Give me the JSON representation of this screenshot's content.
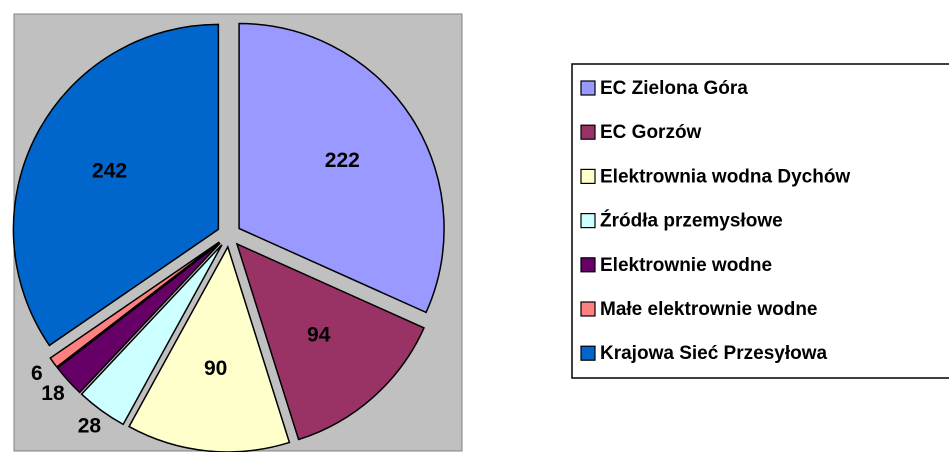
{
  "chart_data": {
    "type": "pie",
    "categories": [
      "EC Zielona Góra",
      "EC Gorzów",
      "Elektrownia wodna Dychów",
      "Źródła przemysłowe",
      "Elektrownie wodne",
      "Małe elektrownie wodne",
      "Krajowa Sieć Przesyłowa"
    ],
    "values": [
      222,
      94,
      90,
      28,
      18,
      6,
      242
    ],
    "colors": [
      "#9999ff",
      "#993366",
      "#ffffcc",
      "#ccffff",
      "#660066",
      "#ff8080",
      "#0066cc"
    ],
    "legend": "right"
  }
}
